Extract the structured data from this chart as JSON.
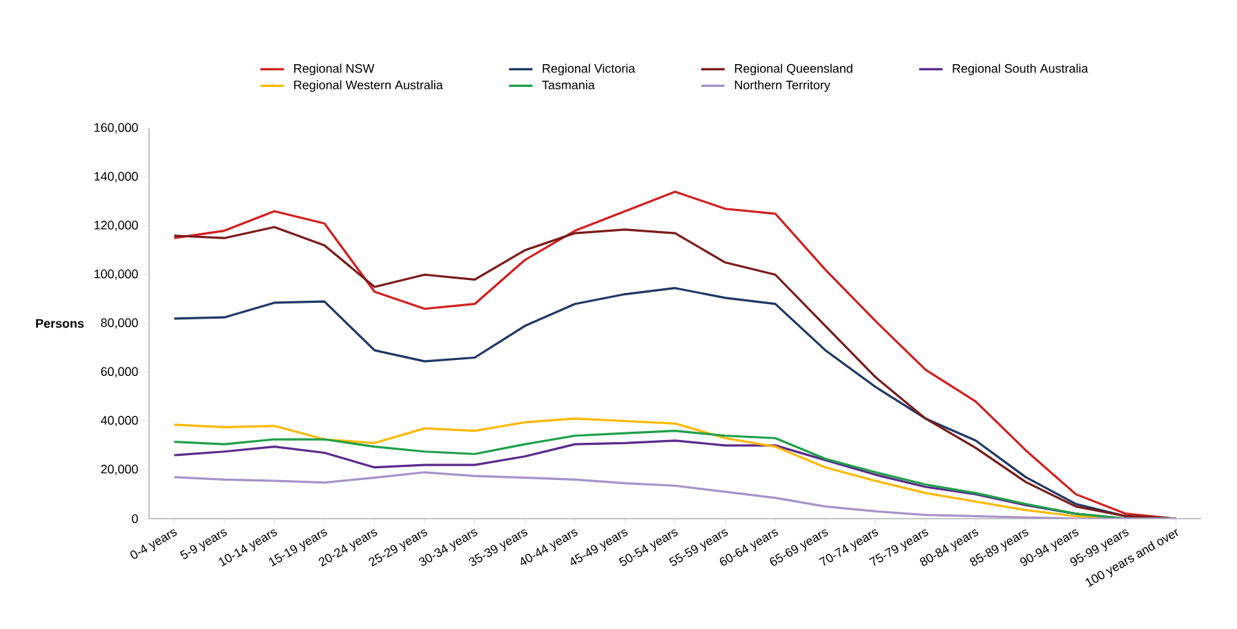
{
  "chart_data": {
    "type": "line",
    "ylabel": "Persons",
    "legend": "top",
    "grid": false,
    "marker": "none",
    "line_style": "solid",
    "categories": [
      "0-4 years",
      "5-9 years",
      "10-14 years",
      "15-19 years",
      "20-24 years",
      "25-29 years",
      "30-34 years",
      "35-39 years",
      "40-44 years",
      "45-49 years",
      "50-54 years",
      "55-59 years",
      "60-64 years",
      "65-69 years",
      "70-74 years",
      "75-79 years",
      "80-84 years",
      "85-89 years",
      "90-94 years",
      "95-99 years",
      "100 years and over"
    ],
    "ylim": [
      0,
      160000
    ],
    "yticks": [
      0,
      {
        "value": 20000,
        "label": "20,000"
      },
      {
        "value": 40000,
        "label": "40,000"
      },
      {
        "value": 60000,
        "label": "60,000"
      },
      {
        "value": 80000,
        "label": "80,000"
      },
      {
        "value": 100000,
        "label": "100,000"
      },
      {
        "value": 120000,
        "label": "120,000"
      },
      {
        "value": 140000,
        "label": "140,000"
      },
      {
        "value": 160000,
        "label": "160,000"
      }
    ],
    "series": [
      {
        "name": "Regional NSW",
        "color": "#d11f1f",
        "values": [
          115000,
          118000,
          126000,
          121000,
          93000,
          86000,
          88000,
          106000,
          118000,
          126000,
          134000,
          127000,
          125000,
          102000,
          81000,
          61000,
          48000,
          28000,
          10000,
          2000,
          0
        ]
      },
      {
        "name": "Regional Victoria",
        "color": "#1f3864",
        "values": [
          82000,
          82500,
          88500,
          89000,
          69000,
          64500,
          66000,
          79000,
          88000,
          92000,
          94500,
          90500,
          88000,
          69000,
          54000,
          41000,
          32000,
          17000,
          6000,
          1000,
          0
        ]
      },
      {
        "name": "Regional Queensland",
        "color": "#7b1a1a",
        "values": [
          116000,
          115000,
          119500,
          112000,
          95000,
          100000,
          98000,
          110000,
          117000,
          118500,
          117000,
          105000,
          100000,
          79000,
          58000,
          41000,
          29000,
          15000,
          5000,
          1000,
          0
        ]
      },
      {
        "name": "Regional South Australia",
        "color": "#5b2a8c",
        "values": [
          26000,
          27500,
          29500,
          27000,
          21000,
          22000,
          22000,
          25500,
          30500,
          31000,
          32000,
          30000,
          30000,
          24000,
          18000,
          13000,
          10000,
          5500,
          2000,
          0,
          0
        ]
      },
      {
        "name": "Regional Western Australia",
        "color": "#ffb800",
        "values": [
          38500,
          37500,
          38000,
          32500,
          31000,
          37000,
          36000,
          39500,
          41000,
          40000,
          39000,
          33000,
          29500,
          21000,
          15500,
          10500,
          7000,
          3500,
          1000,
          0,
          0
        ]
      },
      {
        "name": "Tasmania",
        "color": "#1ea04a",
        "values": [
          31500,
          30500,
          32500,
          32500,
          29500,
          27500,
          26500,
          30500,
          34000,
          35000,
          36000,
          34000,
          33000,
          24500,
          19000,
          14000,
          10500,
          6000,
          2000,
          0,
          0
        ]
      },
      {
        "name": "Northern Territory",
        "color": "#a793c9",
        "values": [
          17000,
          16000,
          15500,
          14800,
          16800,
          19000,
          17500,
          16800,
          16000,
          14500,
          13500,
          11000,
          8500,
          5000,
          3000,
          1500,
          1000,
          500,
          0,
          0,
          0
        ]
      }
    ]
  }
}
